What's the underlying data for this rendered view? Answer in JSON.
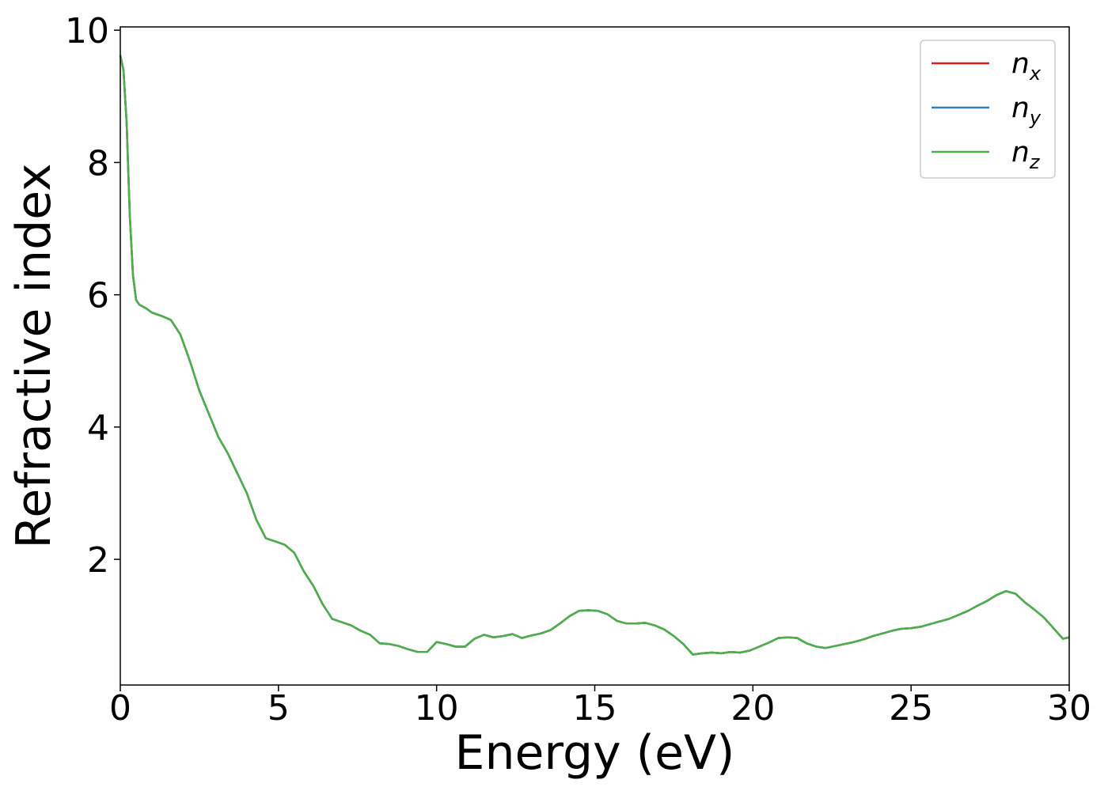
{
  "chart_data": {
    "type": "line",
    "xlabel": "Energy (eV)",
    "ylabel": "Refractive index",
    "xlim": [
      0,
      30
    ],
    "ylim": [
      0.1,
      10.05
    ],
    "xticks": [
      0,
      5,
      10,
      15,
      20,
      25,
      30
    ],
    "yticks": [
      2,
      4,
      6,
      8,
      10
    ],
    "xtick_labels": [
      "0",
      "5",
      "10",
      "15",
      "20",
      "25",
      "30"
    ],
    "ytick_labels": [
      "2",
      "4",
      "6",
      "8",
      "10"
    ],
    "grid": false,
    "legend_position": "top-right",
    "colors": {
      "n_x": "#e41a1c",
      "n_y": "#377eb8",
      "n_z": "#4daf4a"
    },
    "x": [
      0,
      0.1,
      0.2,
      0.3,
      0.4,
      0.5,
      0.6,
      0.8,
      1.0,
      1.3,
      1.6,
      1.9,
      2.2,
      2.5,
      2.8,
      3.1,
      3.4,
      3.7,
      4.0,
      4.3,
      4.6,
      4.9,
      5.2,
      5.5,
      5.8,
      6.1,
      6.4,
      6.7,
      7.0,
      7.3,
      7.6,
      7.9,
      8.2,
      8.5,
      8.8,
      9.1,
      9.4,
      9.7,
      10.0,
      10.3,
      10.6,
      10.9,
      11.2,
      11.5,
      11.8,
      12.1,
      12.4,
      12.7,
      13.0,
      13.3,
      13.6,
      13.9,
      14.2,
      14.5,
      14.8,
      15.1,
      15.4,
      15.7,
      16.0,
      16.3,
      16.6,
      16.9,
      17.2,
      17.5,
      17.8,
      18.1,
      18.4,
      18.7,
      19.0,
      19.3,
      19.6,
      19.9,
      20.2,
      20.5,
      20.8,
      21.1,
      21.4,
      21.7,
      22.0,
      22.3,
      22.6,
      22.9,
      23.2,
      23.5,
      23.8,
      24.1,
      24.4,
      24.7,
      25.0,
      25.3,
      25.6,
      25.9,
      26.2,
      26.5,
      26.8,
      27.1,
      27.4,
      27.7,
      28.0,
      28.3,
      28.6,
      28.9,
      29.2,
      29.5,
      29.8,
      30.0
    ],
    "series": [
      {
        "name": "n_x",
        "values": [
          9.62,
          9.4,
          8.6,
          7.2,
          6.3,
          5.92,
          5.85,
          5.8,
          5.73,
          5.68,
          5.62,
          5.4,
          5.0,
          4.55,
          4.2,
          3.85,
          3.6,
          3.3,
          3.0,
          2.6,
          2.32,
          2.27,
          2.22,
          2.1,
          1.82,
          1.6,
          1.32,
          1.1,
          1.05,
          1.0,
          0.92,
          0.86,
          0.73,
          0.72,
          0.69,
          0.64,
          0.6,
          0.6,
          0.75,
          0.72,
          0.68,
          0.68,
          0.8,
          0.86,
          0.82,
          0.84,
          0.87,
          0.81,
          0.85,
          0.88,
          0.93,
          1.03,
          1.14,
          1.22,
          1.23,
          1.22,
          1.17,
          1.07,
          1.03,
          1.03,
          1.04,
          1.0,
          0.94,
          0.84,
          0.72,
          0.56,
          0.58,
          0.59,
          0.58,
          0.6,
          0.59,
          0.62,
          0.68,
          0.74,
          0.81,
          0.82,
          0.81,
          0.73,
          0.68,
          0.66,
          0.69,
          0.72,
          0.75,
          0.79,
          0.84,
          0.88,
          0.92,
          0.95,
          0.96,
          0.98,
          1.02,
          1.06,
          1.1,
          1.16,
          1.22,
          1.3,
          1.37,
          1.46,
          1.52,
          1.48,
          1.35,
          1.24,
          1.12,
          0.96,
          0.8,
          0.82
        ]
      },
      {
        "name": "n_y",
        "values": [
          9.62,
          9.4,
          8.6,
          7.2,
          6.3,
          5.92,
          5.85,
          5.8,
          5.73,
          5.68,
          5.62,
          5.4,
          5.0,
          4.55,
          4.2,
          3.85,
          3.6,
          3.3,
          3.0,
          2.6,
          2.32,
          2.27,
          2.22,
          2.1,
          1.82,
          1.6,
          1.32,
          1.1,
          1.05,
          1.0,
          0.92,
          0.86,
          0.73,
          0.72,
          0.69,
          0.64,
          0.6,
          0.6,
          0.75,
          0.72,
          0.68,
          0.68,
          0.8,
          0.86,
          0.82,
          0.84,
          0.87,
          0.81,
          0.85,
          0.88,
          0.93,
          1.03,
          1.14,
          1.22,
          1.23,
          1.22,
          1.17,
          1.07,
          1.03,
          1.03,
          1.04,
          1.0,
          0.94,
          0.84,
          0.72,
          0.56,
          0.58,
          0.59,
          0.58,
          0.6,
          0.59,
          0.62,
          0.68,
          0.74,
          0.81,
          0.82,
          0.81,
          0.73,
          0.68,
          0.66,
          0.69,
          0.72,
          0.75,
          0.79,
          0.84,
          0.88,
          0.92,
          0.95,
          0.96,
          0.98,
          1.02,
          1.06,
          1.1,
          1.16,
          1.22,
          1.3,
          1.37,
          1.46,
          1.52,
          1.48,
          1.35,
          1.24,
          1.12,
          0.96,
          0.8,
          0.82
        ]
      },
      {
        "name": "n_z",
        "values": [
          9.62,
          9.4,
          8.6,
          7.2,
          6.3,
          5.92,
          5.85,
          5.8,
          5.73,
          5.68,
          5.62,
          5.4,
          5.0,
          4.55,
          4.2,
          3.85,
          3.6,
          3.3,
          3.0,
          2.6,
          2.32,
          2.27,
          2.22,
          2.1,
          1.82,
          1.6,
          1.32,
          1.1,
          1.05,
          1.0,
          0.92,
          0.86,
          0.73,
          0.72,
          0.69,
          0.64,
          0.6,
          0.6,
          0.75,
          0.72,
          0.68,
          0.68,
          0.8,
          0.86,
          0.82,
          0.84,
          0.87,
          0.81,
          0.85,
          0.88,
          0.93,
          1.03,
          1.14,
          1.22,
          1.23,
          1.22,
          1.17,
          1.07,
          1.03,
          1.03,
          1.04,
          1.0,
          0.94,
          0.84,
          0.72,
          0.56,
          0.58,
          0.59,
          0.58,
          0.6,
          0.59,
          0.62,
          0.68,
          0.74,
          0.81,
          0.82,
          0.81,
          0.73,
          0.68,
          0.66,
          0.69,
          0.72,
          0.75,
          0.79,
          0.84,
          0.88,
          0.92,
          0.95,
          0.96,
          0.98,
          1.02,
          1.06,
          1.1,
          1.16,
          1.22,
          1.3,
          1.37,
          1.46,
          1.52,
          1.48,
          1.35,
          1.24,
          1.12,
          0.96,
          0.8,
          0.82
        ]
      }
    ],
    "legend": [
      {
        "base": "n",
        "sub": "x",
        "series": "n_x"
      },
      {
        "base": "n",
        "sub": "y",
        "series": "n_y"
      },
      {
        "base": "n",
        "sub": "z",
        "series": "n_z"
      }
    ]
  }
}
